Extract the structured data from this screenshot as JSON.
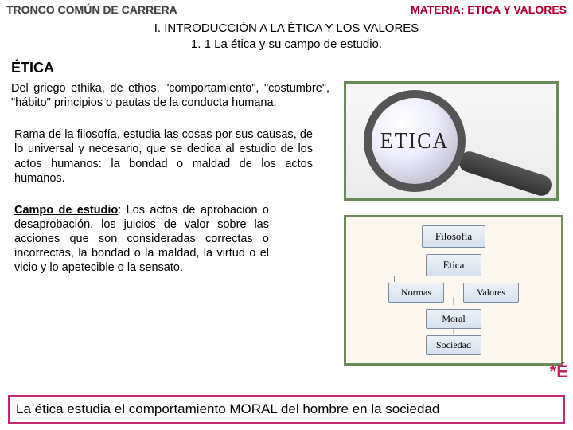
{
  "header": {
    "left": "TRONCO COMÚN DE CARRERA",
    "right": "MATERIA: ETICA Y VALORES"
  },
  "title": {
    "line1": "I. INTRODUCCIÓN A LA ÉTICA Y LOS VALORES",
    "line2": "1. 1 La ética y su campo de estudio."
  },
  "heading": "ÉTICA",
  "paragraphs": {
    "p1": "Del griego ethika, de ethos, \"comportamiento\", \"costumbre\", \"hábito\" principios o pautas de la conducta humana.",
    "p2": "Rama de la filosofía, estudia las cosas por sus causas, de lo universal y necesario, que se dedica al estudio de los actos humanos: la bondad o maldad de los actos humanos.",
    "p3_label": "Campo de estudio",
    "p3_rest": ": Los actos de aprobación o desaprobación, los juicios de valor sobre las acciones que son consideradas correctas o incorrectas, la bondad o la maldad, la virtud o el vicio y lo apetecible o la sensato."
  },
  "magnifier": {
    "word": "ETICA",
    "border_color": "#6a8a5a"
  },
  "diagram": {
    "border_color": "#6a8a5a",
    "bg_color": "#fdf8ef",
    "node_bg_top": "#eef2f8",
    "node_bg_bottom": "#d7e0ee",
    "node_border": "#7a8aa0",
    "nodes": {
      "r1": "Filosofía",
      "r2": "Ética",
      "r3a": "Normas",
      "r3b": "Valores",
      "r4": "Moral",
      "r5": "Sociedad"
    }
  },
  "star": "*É",
  "footer": "La ética estudia el comportamiento MORAL del hombre en la sociedad",
  "colors": {
    "header_left": "#404040",
    "header_right": "#b00030",
    "footer_border": "#c02870",
    "star_color": "#c02050"
  }
}
